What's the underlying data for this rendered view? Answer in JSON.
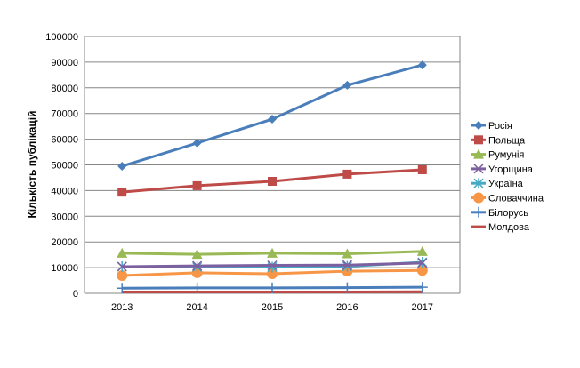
{
  "chart_data": {
    "type": "line",
    "title": "",
    "xlabel": "",
    "ylabel": "Кількість публікацій",
    "categories": [
      "2013",
      "2014",
      "2015",
      "2016",
      "2017"
    ],
    "ylim": [
      0,
      100000
    ],
    "yticks": [
      "0",
      "10000",
      "20000",
      "30000",
      "40000",
      "50000",
      "60000",
      "70000",
      "80000",
      "90000",
      "100000"
    ],
    "grid": true,
    "legend_position": "right",
    "series": [
      {
        "name": "Росія",
        "color": "#4a7ebb",
        "marker": "diamond",
        "values": [
          49500,
          58500,
          67800,
          81000,
          88900
        ]
      },
      {
        "name": "Польща",
        "color": "#be4b48",
        "marker": "square",
        "values": [
          39400,
          41900,
          43600,
          46400,
          48100
        ]
      },
      {
        "name": "Румунія",
        "color": "#98b954",
        "marker": "triangle",
        "values": [
          15600,
          15200,
          15600,
          15400,
          16300
        ]
      },
      {
        "name": "Угорщина",
        "color": "#7d60a0",
        "marker": "x",
        "values": [
          10400,
          10700,
          10900,
          11000,
          11800
        ]
      },
      {
        "name": "Україна",
        "color": "#46aac5",
        "marker": "asterisk",
        "values": [
          10400,
          10200,
          10200,
          10500,
          12100
        ]
      },
      {
        "name": "Словаччина",
        "color": "#f79646",
        "marker": "circle",
        "values": [
          6900,
          8000,
          7600,
          8600,
          8900
        ]
      },
      {
        "name": "Білорусь",
        "color": "#4a7ebb",
        "marker": "plus",
        "values": [
          2000,
          2100,
          2100,
          2200,
          2400
        ]
      },
      {
        "name": "Молдова",
        "color": "#be4b48",
        "marker": "none",
        "values": [
          500,
          500,
          500,
          500,
          600
        ]
      }
    ]
  }
}
